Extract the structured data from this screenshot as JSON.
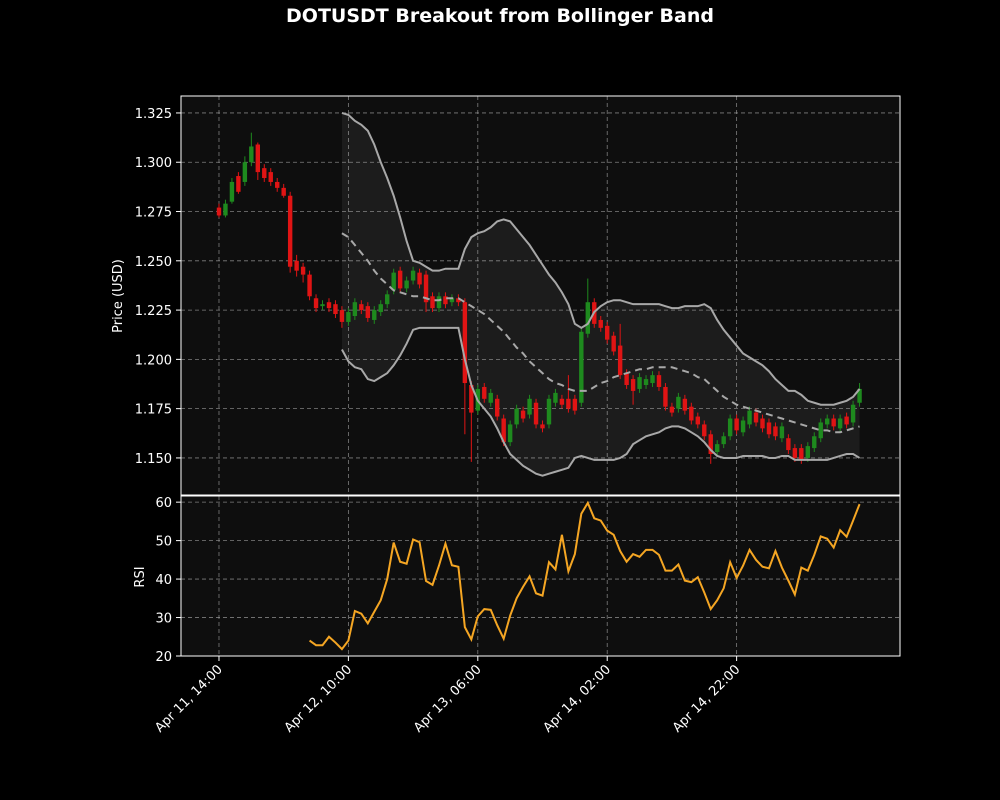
{
  "chart_data": [
    {
      "type": "candlestick",
      "title": "DOTUSDT Breakout from Bollinger Band",
      "ylabel": "Price (USD)",
      "x": [
        "Apr 11, 14:00",
        "Apr 11, 15:00",
        "Apr 11, 16:00",
        "Apr 11, 17:00",
        "Apr 11, 18:00",
        "Apr 11, 19:00",
        "Apr 11, 20:00",
        "Apr 11, 21:00",
        "Apr 11, 22:00",
        "Apr 11, 23:00",
        "Apr 12, 00:00",
        "Apr 12, 01:00",
        "Apr 12, 02:00",
        "Apr 12, 03:00",
        "Apr 12, 04:00",
        "Apr 12, 05:00",
        "Apr 12, 06:00",
        "Apr 12, 07:00",
        "Apr 12, 08:00",
        "Apr 12, 09:00",
        "Apr 12, 10:00",
        "Apr 12, 11:00",
        "Apr 12, 12:00",
        "Apr 12, 13:00",
        "Apr 12, 14:00",
        "Apr 12, 15:00",
        "Apr 12, 16:00",
        "Apr 12, 17:00",
        "Apr 12, 18:00",
        "Apr 12, 19:00",
        "Apr 12, 20:00",
        "Apr 12, 21:00",
        "Apr 12, 22:00",
        "Apr 12, 23:00",
        "Apr 13, 00:00",
        "Apr 13, 01:00",
        "Apr 13, 02:00",
        "Apr 13, 03:00",
        "Apr 13, 04:00",
        "Apr 13, 05:00",
        "Apr 13, 06:00",
        "Apr 13, 07:00",
        "Apr 13, 08:00",
        "Apr 13, 09:00",
        "Apr 13, 10:00",
        "Apr 13, 11:00",
        "Apr 13, 12:00",
        "Apr 13, 13:00",
        "Apr 13, 14:00",
        "Apr 13, 15:00",
        "Apr 13, 16:00",
        "Apr 13, 17:00",
        "Apr 13, 18:00",
        "Apr 13, 19:00",
        "Apr 13, 20:00",
        "Apr 13, 21:00",
        "Apr 13, 22:00",
        "Apr 13, 23:00",
        "Apr 14, 00:00",
        "Apr 14, 01:00",
        "Apr 14, 02:00",
        "Apr 14, 03:00",
        "Apr 14, 04:00",
        "Apr 14, 05:00",
        "Apr 14, 06:00",
        "Apr 14, 07:00",
        "Apr 14, 08:00",
        "Apr 14, 09:00",
        "Apr 14, 10:00",
        "Apr 14, 11:00",
        "Apr 14, 12:00",
        "Apr 14, 13:00",
        "Apr 14, 14:00",
        "Apr 14, 15:00",
        "Apr 14, 16:00",
        "Apr 14, 17:00",
        "Apr 14, 18:00",
        "Apr 14, 19:00",
        "Apr 14, 20:00",
        "Apr 14, 21:00",
        "Apr 14, 22:00",
        "Apr 14, 23:00",
        "Apr 15, 00:00",
        "Apr 15, 01:00",
        "Apr 15, 02:00",
        "Apr 15, 03:00",
        "Apr 15, 04:00",
        "Apr 15, 05:00",
        "Apr 15, 06:00",
        "Apr 15, 07:00",
        "Apr 15, 08:00",
        "Apr 15, 09:00",
        "Apr 15, 10:00",
        "Apr 15, 11:00",
        "Apr 15, 12:00",
        "Apr 15, 13:00",
        "Apr 15, 14:00",
        "Apr 15, 15:00",
        "Apr 15, 16:00",
        "Apr 15, 17:00"
      ],
      "open": [
        1.277,
        1.273,
        1.28,
        1.293,
        1.29,
        1.3,
        1.309,
        1.297,
        1.295,
        1.29,
        1.287,
        1.283,
        1.25,
        1.247,
        1.243,
        1.231,
        1.227,
        1.229,
        1.228,
        1.225,
        1.219,
        1.222,
        1.228,
        1.227,
        1.22,
        1.224,
        1.228,
        1.235,
        1.245,
        1.236,
        1.24,
        1.244,
        1.243,
        1.232,
        1.226,
        1.232,
        1.229,
        1.231,
        1.229,
        1.187,
        1.174,
        1.186,
        1.178,
        1.18,
        1.17,
        1.158,
        1.167,
        1.174,
        1.172,
        1.178,
        1.167,
        1.167,
        1.178,
        1.18,
        1.18,
        1.18,
        1.178,
        1.213,
        1.229,
        1.22,
        1.217,
        1.212,
        1.207,
        1.193,
        1.19,
        1.185,
        1.187,
        1.188,
        1.192,
        1.186,
        1.176,
        1.175,
        1.18,
        1.176,
        1.171,
        1.167,
        1.162,
        1.153,
        1.157,
        1.161,
        1.17,
        1.163,
        1.167,
        1.173,
        1.17,
        1.168,
        1.166,
        1.16,
        1.16,
        1.155,
        1.155,
        1.15,
        1.155,
        1.16,
        1.167,
        1.17,
        1.165,
        1.171,
        1.168,
        1.178
      ],
      "high": [
        1.279,
        1.281,
        1.292,
        1.295,
        1.303,
        1.315,
        1.31,
        1.299,
        1.297,
        1.292,
        1.289,
        1.285,
        1.253,
        1.249,
        1.245,
        1.233,
        1.23,
        1.231,
        1.23,
        1.227,
        1.226,
        1.231,
        1.23,
        1.229,
        1.227,
        1.23,
        1.235,
        1.246,
        1.247,
        1.242,
        1.247,
        1.246,
        1.245,
        1.234,
        1.234,
        1.234,
        1.233,
        1.233,
        1.231,
        1.189,
        1.187,
        1.188,
        1.185,
        1.182,
        1.172,
        1.169,
        1.177,
        1.176,
        1.182,
        1.18,
        1.169,
        1.182,
        1.185,
        1.182,
        1.192,
        1.182,
        1.216,
        1.241,
        1.231,
        1.222,
        1.219,
        1.214,
        1.218,
        1.195,
        1.192,
        1.193,
        1.192,
        1.194,
        1.194,
        1.188,
        1.178,
        1.183,
        1.182,
        1.178,
        1.173,
        1.169,
        1.164,
        1.159,
        1.163,
        1.172,
        1.172,
        1.171,
        1.176,
        1.175,
        1.172,
        1.17,
        1.168,
        1.168,
        1.162,
        1.157,
        1.157,
        1.158,
        1.163,
        1.17,
        1.172,
        1.172,
        1.172,
        1.173,
        1.179,
        1.188
      ],
      "low": [
        1.272,
        1.272,
        1.279,
        1.284,
        1.288,
        1.298,
        1.291,
        1.29,
        1.288,
        1.285,
        1.282,
        1.244,
        1.242,
        1.239,
        1.23,
        1.224,
        1.225,
        1.224,
        1.221,
        1.216,
        1.217,
        1.22,
        1.223,
        1.219,
        1.218,
        1.222,
        1.226,
        1.233,
        1.234,
        1.234,
        1.238,
        1.236,
        1.224,
        1.224,
        1.224,
        1.226,
        1.227,
        1.227,
        1.162,
        1.148,
        1.172,
        1.178,
        1.176,
        1.169,
        1.156,
        1.156,
        1.165,
        1.168,
        1.17,
        1.165,
        1.163,
        1.165,
        1.176,
        1.175,
        1.173,
        1.172,
        1.176,
        1.211,
        1.216,
        1.214,
        1.208,
        1.202,
        1.19,
        1.185,
        1.177,
        1.183,
        1.185,
        1.186,
        1.184,
        1.174,
        1.171,
        1.173,
        1.172,
        1.167,
        1.165,
        1.159,
        1.147,
        1.151,
        1.155,
        1.159,
        1.162,
        1.161,
        1.165,
        1.166,
        1.163,
        1.16,
        1.159,
        1.158,
        1.152,
        1.148,
        1.147,
        1.148,
        1.153,
        1.158,
        1.165,
        1.164,
        1.163,
        1.165,
        1.166,
        1.176
      ],
      "close": [
        1.273,
        1.279,
        1.29,
        1.285,
        1.3,
        1.308,
        1.295,
        1.292,
        1.29,
        1.287,
        1.283,
        1.247,
        1.245,
        1.243,
        1.232,
        1.226,
        1.228,
        1.226,
        1.223,
        1.219,
        1.224,
        1.229,
        1.225,
        1.221,
        1.225,
        1.228,
        1.233,
        1.244,
        1.236,
        1.24,
        1.245,
        1.238,
        1.229,
        1.226,
        1.232,
        1.228,
        1.231,
        1.229,
        1.188,
        1.173,
        1.185,
        1.18,
        1.183,
        1.171,
        1.158,
        1.167,
        1.175,
        1.17,
        1.18,
        1.167,
        1.165,
        1.18,
        1.183,
        1.177,
        1.175,
        1.174,
        1.214,
        1.229,
        1.218,
        1.216,
        1.21,
        1.204,
        1.192,
        1.187,
        1.184,
        1.191,
        1.19,
        1.192,
        1.186,
        1.176,
        1.173,
        1.181,
        1.174,
        1.169,
        1.167,
        1.161,
        1.152,
        1.157,
        1.161,
        1.17,
        1.164,
        1.169,
        1.174,
        1.168,
        1.165,
        1.162,
        1.161,
        1.166,
        1.154,
        1.15,
        1.149,
        1.156,
        1.161,
        1.168,
        1.17,
        1.166,
        1.17,
        1.167,
        1.177,
        1.185
      ],
      "up_color": "#1e8a1e",
      "down_color": "#e01414",
      "bollinger": {
        "color": "#a8a8a8",
        "fill": "#ffffff",
        "upper": [
          null,
          null,
          null,
          null,
          null,
          null,
          null,
          null,
          null,
          null,
          null,
          null,
          null,
          null,
          null,
          null,
          null,
          null,
          null,
          1.325,
          1.324,
          1.321,
          1.319,
          1.316,
          1.309,
          1.3,
          1.292,
          1.283,
          1.272,
          1.26,
          1.25,
          1.249,
          1.247,
          1.245,
          1.245,
          1.246,
          1.246,
          1.246,
          1.256,
          1.262,
          1.264,
          1.265,
          1.267,
          1.27,
          1.271,
          1.27,
          1.266,
          1.262,
          1.258,
          1.253,
          1.248,
          1.243,
          1.239,
          1.234,
          1.228,
          1.218,
          1.216,
          1.218,
          1.224,
          1.227,
          1.229,
          1.23,
          1.23,
          1.229,
          1.228,
          1.228,
          1.228,
          1.228,
          1.228,
          1.227,
          1.226,
          1.226,
          1.227,
          1.227,
          1.227,
          1.228,
          1.226,
          1.22,
          1.215,
          1.211,
          1.207,
          1.203,
          1.201,
          1.199,
          1.197,
          1.194,
          1.19,
          1.187,
          1.184,
          1.184,
          1.182,
          1.179,
          1.178,
          1.177,
          1.177,
          1.177,
          1.178,
          1.179,
          1.181,
          1.185
        ],
        "middle": [
          null,
          null,
          null,
          null,
          null,
          null,
          null,
          null,
          null,
          null,
          null,
          null,
          null,
          null,
          null,
          null,
          null,
          null,
          null,
          1.264,
          1.262,
          1.258,
          1.254,
          1.25,
          1.245,
          1.241,
          1.238,
          1.235,
          1.234,
          1.233,
          1.232,
          1.232,
          1.231,
          1.23,
          1.23,
          1.231,
          1.231,
          1.231,
          1.229,
          1.227,
          1.225,
          1.223,
          1.22,
          1.217,
          1.214,
          1.21,
          1.206,
          1.203,
          1.199,
          1.196,
          1.193,
          1.19,
          1.188,
          1.187,
          1.185,
          1.184,
          1.184,
          1.184,
          1.186,
          1.188,
          1.189,
          1.191,
          1.192,
          1.193,
          1.194,
          1.195,
          1.195,
          1.196,
          1.196,
          1.196,
          1.196,
          1.195,
          1.194,
          1.193,
          1.191,
          1.19,
          1.187,
          1.184,
          1.181,
          1.179,
          1.177,
          1.176,
          1.175,
          1.174,
          1.173,
          1.172,
          1.171,
          1.17,
          1.169,
          1.168,
          1.167,
          1.166,
          1.165,
          1.164,
          1.164,
          1.163,
          1.163,
          1.164,
          1.165,
          1.166
        ],
        "lower": [
          null,
          null,
          null,
          null,
          null,
          null,
          null,
          null,
          null,
          null,
          null,
          null,
          null,
          null,
          null,
          null,
          null,
          null,
          null,
          1.205,
          1.199,
          1.196,
          1.195,
          1.19,
          1.189,
          1.191,
          1.193,
          1.197,
          1.202,
          1.208,
          1.215,
          1.216,
          1.216,
          1.216,
          1.216,
          1.216,
          1.216,
          1.216,
          1.2,
          1.187,
          1.179,
          1.175,
          1.171,
          1.165,
          1.158,
          1.152,
          1.149,
          1.146,
          1.144,
          1.142,
          1.141,
          1.142,
          1.143,
          1.144,
          1.145,
          1.15,
          1.151,
          1.15,
          1.149,
          1.149,
          1.149,
          1.149,
          1.15,
          1.152,
          1.157,
          1.159,
          1.161,
          1.162,
          1.163,
          1.165,
          1.166,
          1.166,
          1.165,
          1.163,
          1.161,
          1.158,
          1.154,
          1.151,
          1.15,
          1.15,
          1.15,
          1.151,
          1.151,
          1.151,
          1.151,
          1.15,
          1.15,
          1.151,
          1.151,
          1.149,
          1.149,
          1.149,
          1.149,
          1.149,
          1.149,
          1.15,
          1.151,
          1.152,
          1.152,
          1.15
        ]
      },
      "ylim": [
        1.1312,
        1.3336
      ],
      "yticks": [
        {
          "value": 1.15,
          "label": "1.150"
        },
        1.175,
        {
          "value": 1.2,
          "label": "1.200"
        },
        1.225,
        {
          "value": 1.25,
          "label": "1.250"
        },
        1.275,
        {
          "value": 1.3,
          "label": "1.300"
        },
        1.325
      ],
      "grid": true
    },
    {
      "type": "line",
      "ylabel": "RSI",
      "color": "#f5a623",
      "values": [
        null,
        null,
        null,
        null,
        null,
        null,
        null,
        null,
        null,
        null,
        null,
        null,
        null,
        null,
        24,
        22.8,
        22.8,
        25,
        23.5,
        21.8,
        24,
        31.7,
        31,
        28.5,
        31.5,
        34.5,
        40,
        49.5,
        44.5,
        44,
        50.3,
        49.6,
        39.5,
        38.5,
        43.5,
        49.2,
        43.6,
        43.2,
        27.5,
        24.3,
        30.3,
        32.2,
        32,
        28,
        24.5,
        30.5,
        35,
        38,
        40.7,
        36.3,
        35.7,
        44.4,
        42.5,
        51.5,
        42,
        46.5,
        57,
        59.8,
        55.8,
        55.2,
        52.6,
        51.5,
        47.3,
        44.5,
        46.5,
        45.8,
        47.6,
        47.6,
        46.3,
        42.2,
        42.2,
        43.8,
        39.6,
        39.2,
        40.5,
        36.5,
        32.2,
        34.5,
        37.6,
        44.4,
        40.3,
        43.5,
        47.6,
        45,
        43.2,
        42.8,
        47.3,
        43,
        39.6,
        36,
        43,
        42.2,
        46.3,
        51.1,
        50.5,
        48.2,
        52.7,
        51,
        55.2,
        59.5
      ],
      "ylim": [
        20,
        61.6
      ],
      "yticks": [
        20,
        30,
        40,
        50,
        60
      ],
      "xticks": [
        "Apr 11, 14:00",
        "Apr 12, 10:00",
        "Apr 13, 06:00",
        "Apr 14, 02:00",
        "Apr 14, 22:00"
      ],
      "grid": true
    }
  ]
}
